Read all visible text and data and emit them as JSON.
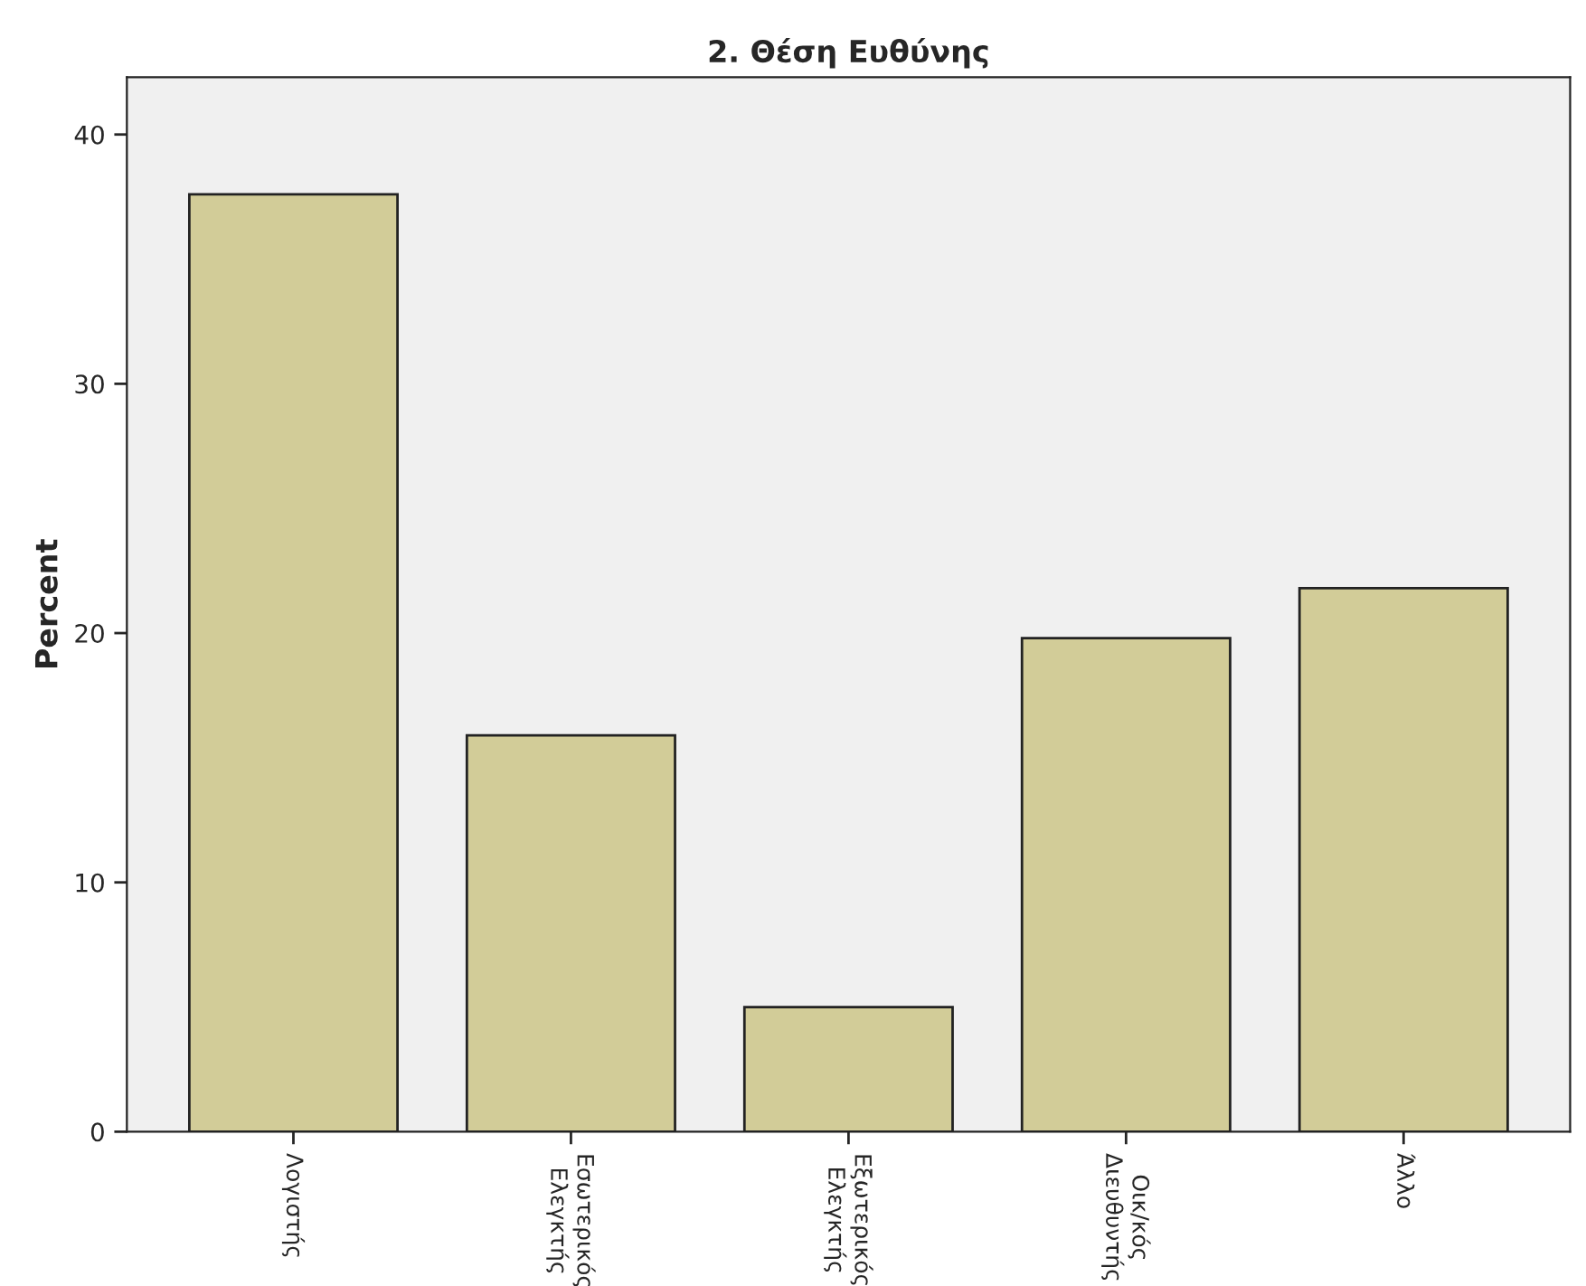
{
  "chart_data": {
    "type": "bar",
    "title": "2. Θέση Ευθύνης",
    "ylabel": "Percent",
    "categories": [
      "Λογιστής",
      "Εσωτερικός\nΕλεγκτής",
      "Εξωτερικός\nΕλεγκτής",
      "Οικ/κός\nΔιευθυντής",
      "Άλλο"
    ],
    "values": [
      37.6,
      15.9,
      5.0,
      19.8,
      21.8
    ],
    "color": "#d2cc98",
    "ylim": [
      0,
      42.3
    ],
    "yticks": [
      0,
      10,
      20,
      30,
      40
    ],
    "grid": false
  }
}
